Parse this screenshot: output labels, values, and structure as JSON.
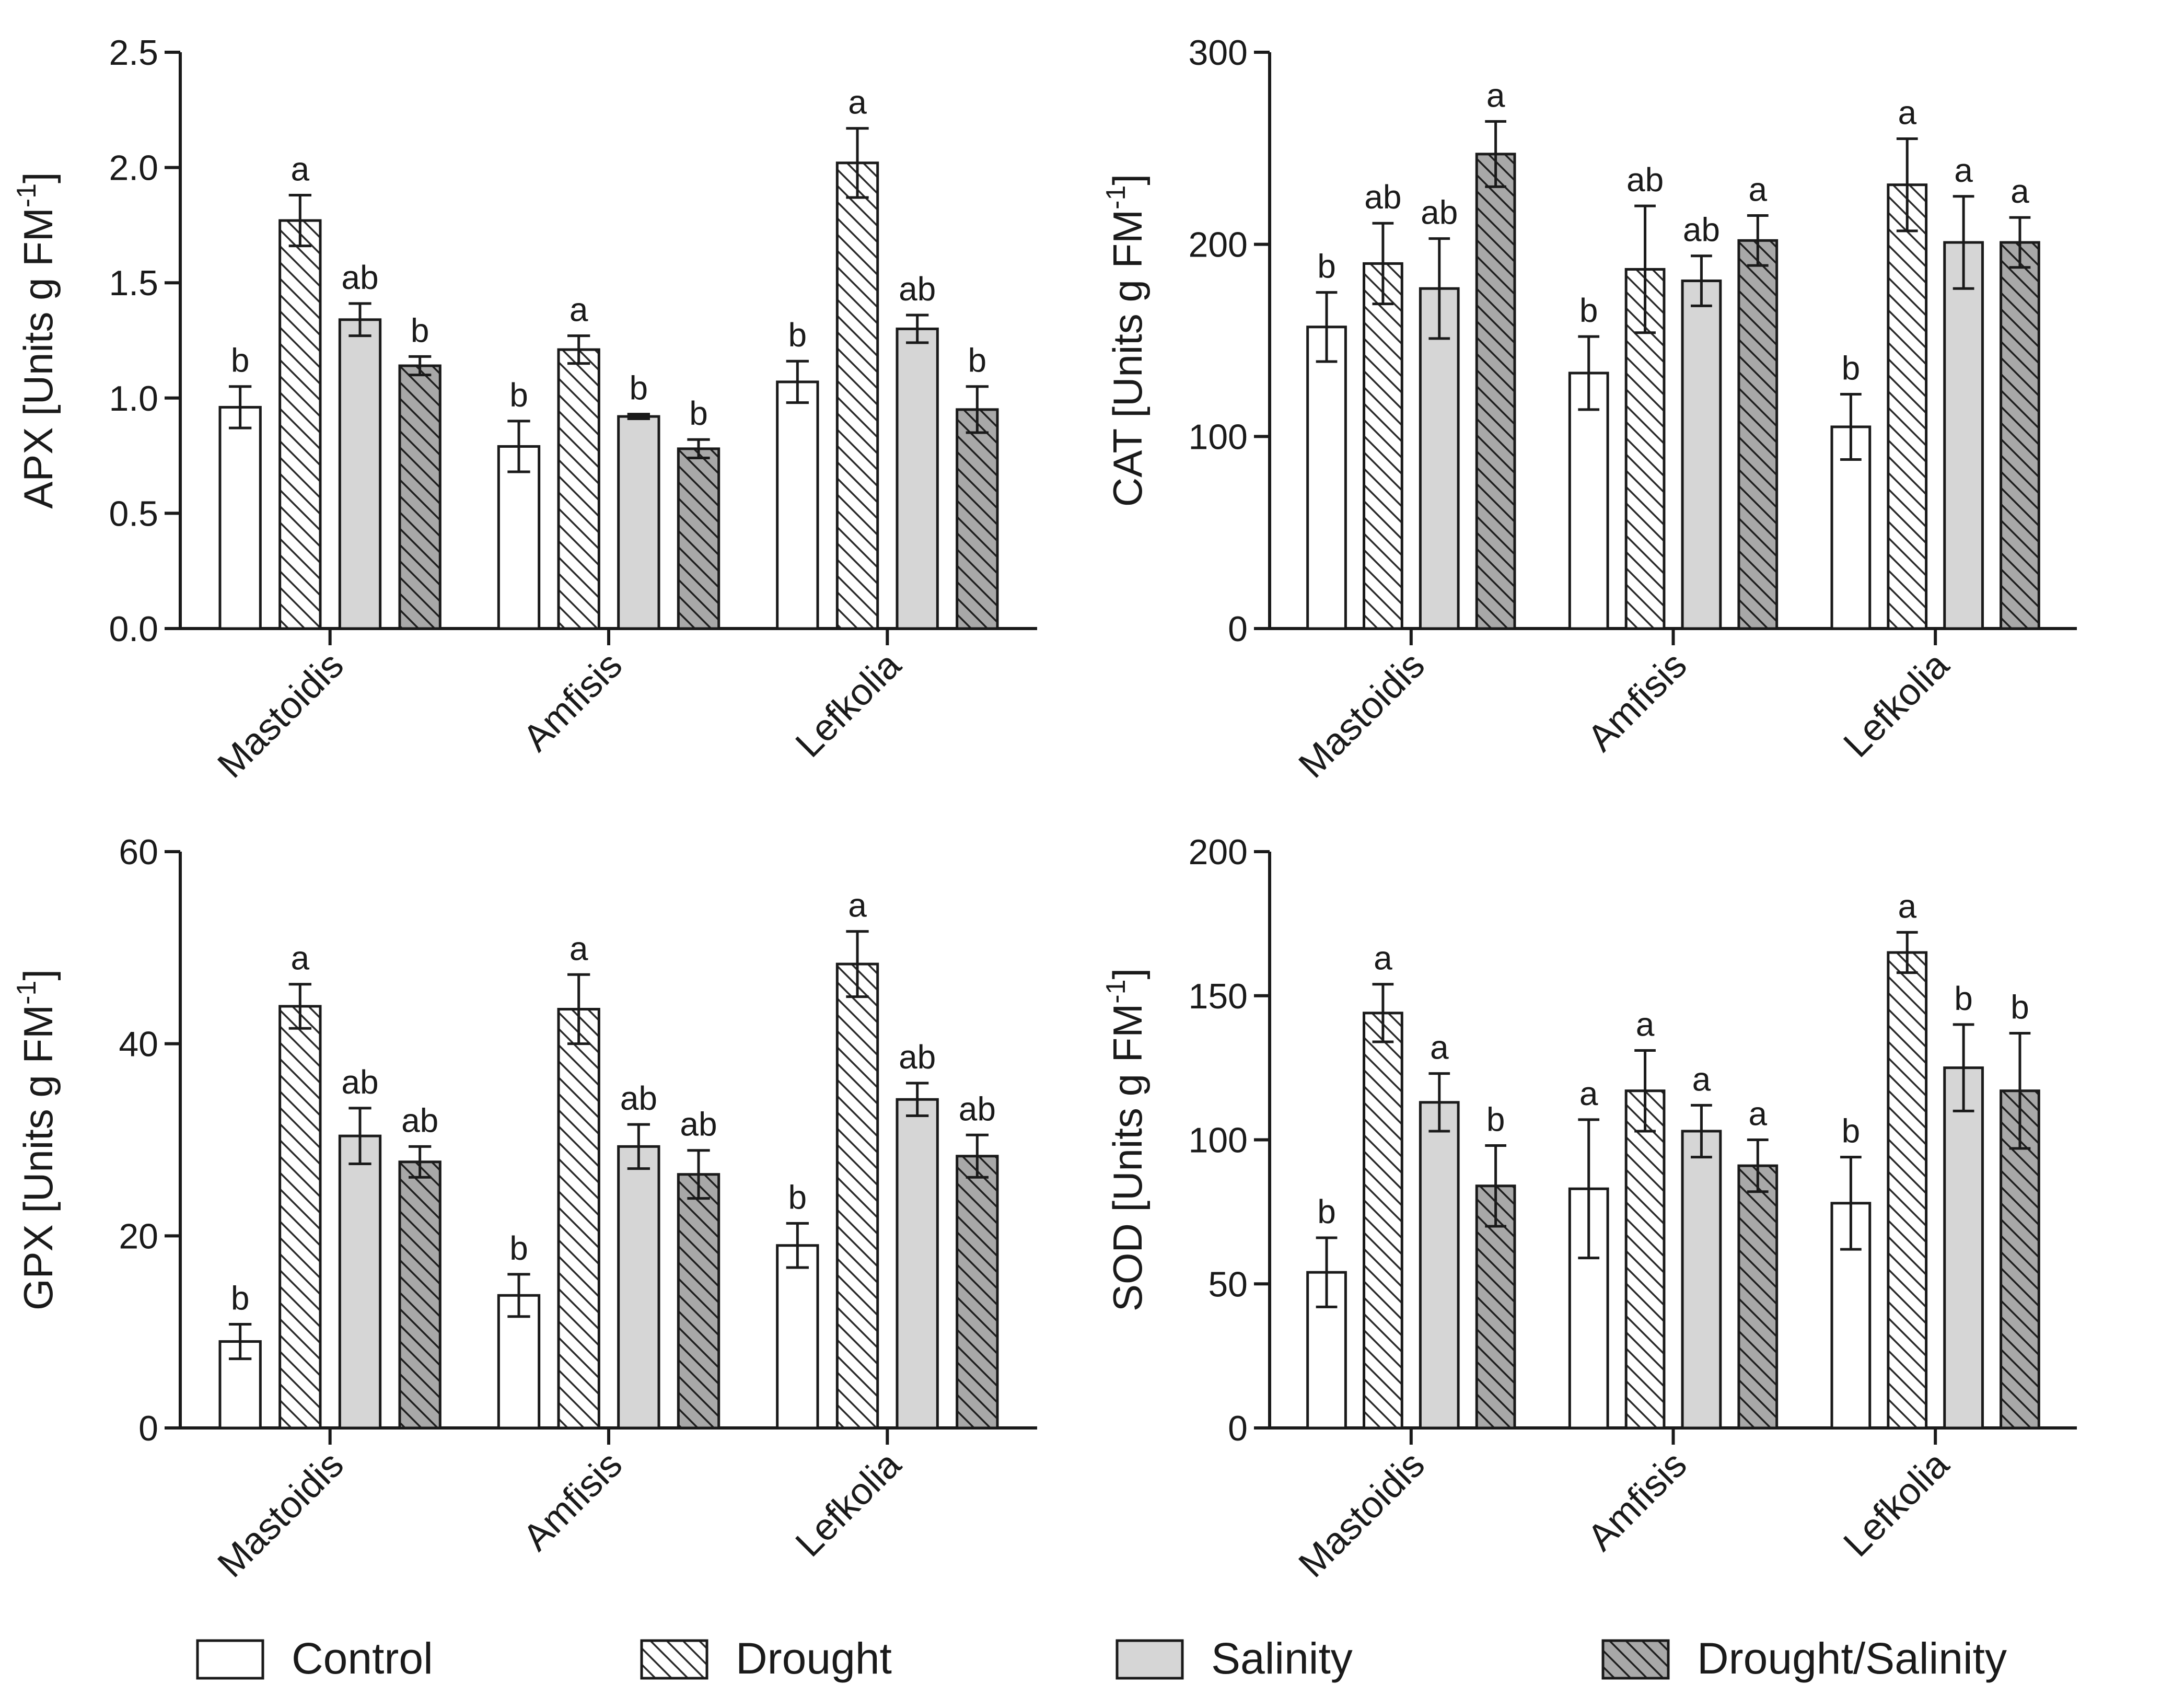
{
  "chart_data": [
    {
      "type": "bar",
      "ylabel": "APX [Units g FM",
      "ylabel_sup": "-1",
      "ylabel_close": "]",
      "ylim": [
        0,
        2.5
      ],
      "yticks": [
        0,
        0.5,
        1.0,
        1.5,
        2.0,
        2.5
      ],
      "ytick_labels": [
        "0.0",
        "0.5",
        "1.0",
        "1.5",
        "2.0",
        "2.5"
      ],
      "categories": [
        "Mastoidis",
        "Amfisis",
        "Lefkolia"
      ],
      "series": [
        {
          "name": "Control",
          "values": [
            0.96,
            0.79,
            1.07
          ],
          "errors": [
            0.09,
            0.11,
            0.09
          ],
          "letters": [
            "b",
            "b",
            "b"
          ]
        },
        {
          "name": "Drought",
          "values": [
            1.77,
            1.21,
            2.02
          ],
          "errors": [
            0.11,
            0.06,
            0.15
          ],
          "letters": [
            "a",
            "a",
            "a"
          ]
        },
        {
          "name": "Salinity",
          "values": [
            1.34,
            0.92,
            1.3
          ],
          "errors": [
            0.07,
            0.01,
            0.06
          ],
          "letters": [
            "ab",
            "b",
            "ab"
          ]
        },
        {
          "name": "Drought/Salinity",
          "values": [
            1.14,
            0.78,
            0.95
          ],
          "errors": [
            0.04,
            0.04,
            0.1
          ],
          "letters": [
            "b",
            "b",
            "b"
          ]
        }
      ]
    },
    {
      "type": "bar",
      "ylabel": "CAT [Units g FM",
      "ylabel_sup": "-1",
      "ylabel_close": "]",
      "ylim": [
        0,
        300
      ],
      "yticks": [
        0,
        100,
        200,
        300
      ],
      "ytick_labels": [
        "0",
        "100",
        "200",
        "300"
      ],
      "categories": [
        "Mastoidis",
        "Amfisis",
        "Lefkolia"
      ],
      "series": [
        {
          "name": "Control",
          "values": [
            157,
            133,
            105
          ],
          "errors": [
            18,
            19,
            17
          ],
          "letters": [
            "b",
            "b",
            "b"
          ]
        },
        {
          "name": "Drought",
          "values": [
            190,
            187,
            231
          ],
          "errors": [
            21,
            33,
            24
          ],
          "letters": [
            "ab",
            "ab",
            "a"
          ]
        },
        {
          "name": "Salinity",
          "values": [
            177,
            181,
            201
          ],
          "errors": [
            26,
            13,
            24
          ],
          "letters": [
            "ab",
            "ab",
            "a"
          ]
        },
        {
          "name": "Drought/Salinity",
          "values": [
            247,
            202,
            201
          ],
          "errors": [
            17,
            13,
            13
          ],
          "letters": [
            "a",
            "a",
            "a"
          ]
        }
      ]
    },
    {
      "type": "bar",
      "ylabel": "GPX [Units g FM",
      "ylabel_sup": "-1",
      "ylabel_close": "]",
      "ylim": [
        0,
        60
      ],
      "yticks": [
        0,
        20,
        40,
        60
      ],
      "ytick_labels": [
        "0",
        "20",
        "40",
        "60"
      ],
      "categories": [
        "Mastoidis",
        "Amfisis",
        "Lefkolia"
      ],
      "series": [
        {
          "name": "Control",
          "values": [
            9,
            13.8,
            19
          ],
          "errors": [
            1.8,
            2.2,
            2.3
          ],
          "letters": [
            "b",
            "b",
            "b"
          ]
        },
        {
          "name": "Drought",
          "values": [
            43.9,
            43.6,
            48.3
          ],
          "errors": [
            2.3,
            3.6,
            3.4
          ],
          "letters": [
            "a",
            "a",
            "a"
          ]
        },
        {
          "name": "Salinity",
          "values": [
            30.4,
            29.3,
            34.2
          ],
          "errors": [
            2.9,
            2.3,
            1.7
          ],
          "letters": [
            "ab",
            "ab",
            "ab"
          ]
        },
        {
          "name": "Drought/Salinity",
          "values": [
            27.7,
            26.4,
            28.3
          ],
          "errors": [
            1.6,
            2.5,
            2.2
          ],
          "letters": [
            "ab",
            "ab",
            "ab"
          ]
        }
      ]
    },
    {
      "type": "bar",
      "ylabel": "SOD [Units g FM",
      "ylabel_sup": "-1",
      "ylabel_close": "]",
      "ylim": [
        0,
        200
      ],
      "yticks": [
        0,
        50,
        100,
        150,
        200
      ],
      "ytick_labels": [
        "0",
        "50",
        "100",
        "150",
        "200"
      ],
      "categories": [
        "Mastoidis",
        "Amfisis",
        "Lefkolia"
      ],
      "series": [
        {
          "name": "Control",
          "values": [
            54,
            83,
            78
          ],
          "errors": [
            12,
            24,
            16
          ],
          "letters": [
            "b",
            "a",
            "b"
          ]
        },
        {
          "name": "Drought",
          "values": [
            144,
            117,
            165
          ],
          "errors": [
            10,
            14,
            7
          ],
          "letters": [
            "a",
            "a",
            "a"
          ]
        },
        {
          "name": "Salinity",
          "values": [
            113,
            103,
            125
          ],
          "errors": [
            10,
            9,
            15
          ],
          "letters": [
            "a",
            "a",
            "b"
          ]
        },
        {
          "name": "Drought/Salinity",
          "values": [
            84,
            91,
            117
          ],
          "errors": [
            14,
            9,
            20
          ],
          "letters": [
            "b",
            "a",
            "b"
          ]
        }
      ]
    }
  ],
  "legend": {
    "items": [
      {
        "name": "Control",
        "label": "Control"
      },
      {
        "name": "Drought",
        "label": "Drought"
      },
      {
        "name": "Salinity",
        "label": "Salinity"
      },
      {
        "name": "Drought/Salinity",
        "label": "Drought/Salinity"
      }
    ]
  },
  "styles": {
    "Control": {
      "fill": "#ffffff",
      "hatch": false,
      "hatch_color": ""
    },
    "Drought": {
      "fill": "#ffffff",
      "hatch": true,
      "hatch_color": "#2a2a2a"
    },
    "Salinity": {
      "fill": "#d6d6d6",
      "hatch": false,
      "hatch_color": ""
    },
    "Drought/Salinity": {
      "fill": "#a8a8a8",
      "hatch": true,
      "hatch_color": "#1e1e1e"
    }
  }
}
